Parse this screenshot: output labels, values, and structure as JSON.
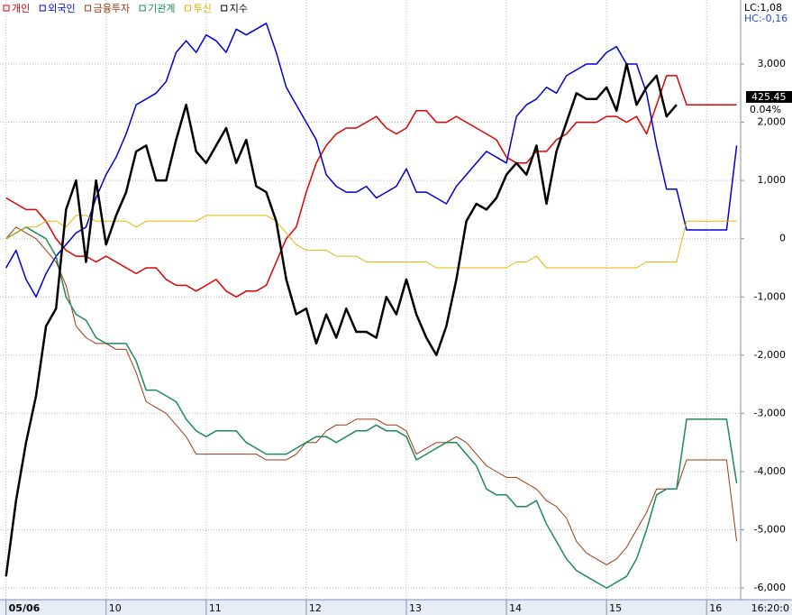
{
  "chart_data": {
    "type": "line",
    "legend_position": "top-left",
    "lc_label": "LC:1,08",
    "hc_label": "HC:-0,16",
    "last_price_label": "425.45",
    "last_change_label": "0.04%",
    "x": [
      0,
      0.1,
      0.2,
      0.3,
      0.4,
      0.5,
      0.6,
      0.7,
      0.8,
      0.9,
      1,
      1.1,
      1.2,
      1.3,
      1.4,
      1.5,
      1.6,
      1.7,
      1.8,
      1.9,
      2,
      2.1,
      2.2,
      2.3,
      2.4,
      2.5,
      2.6,
      2.7,
      2.8,
      2.9,
      3,
      3.1,
      3.2,
      3.3,
      3.4,
      3.5,
      3.6,
      3.7,
      3.8,
      3.9,
      4,
      4.1,
      4.2,
      4.3,
      4.4,
      4.5,
      4.6,
      4.7,
      4.8,
      4.9,
      5,
      5.1,
      5.2,
      5.3,
      5.4,
      5.5,
      5.6,
      5.7,
      5.8,
      5.9,
      6,
      6.1,
      6.2,
      6.3,
      6.4,
      6.5,
      6.6,
      6.7,
      6.8,
      6.9,
      7,
      7.1,
      7.2,
      7.3
    ],
    "xlim": [
      -0.06,
      7.34
    ],
    "xticks": [
      {
        "value": 0,
        "label": "05/06"
      },
      {
        "value": 1,
        "label": "10"
      },
      {
        "value": 2,
        "label": "11"
      },
      {
        "value": 3,
        "label": "12"
      },
      {
        "value": 4,
        "label": "13"
      },
      {
        "value": 5,
        "label": "14"
      },
      {
        "value": 6,
        "label": "15"
      },
      {
        "value": 7,
        "label": "16"
      }
    ],
    "x_end_label": "16:20:0",
    "ylim": [
      -6200,
      4100
    ],
    "yticks": [
      {
        "value": 3000,
        "label": "3,000"
      },
      {
        "value": 2000,
        "label": "2,000"
      },
      {
        "value": 1000,
        "label": "1,000"
      },
      0,
      {
        "value": -1000,
        "label": "-1,000"
      },
      {
        "value": -2000,
        "label": "-2,000"
      },
      {
        "value": -3000,
        "label": "-3,000"
      },
      {
        "value": -4000,
        "label": "-4,000"
      },
      {
        "value": -5000,
        "label": "-5,000"
      },
      {
        "value": -6000,
        "label": "-6,000"
      }
    ],
    "grid": true,
    "series": [
      {
        "name": "개인",
        "color": "#e00000",
        "width": 1.5,
        "values": [
          700,
          600,
          500,
          500,
          300,
          0,
          -200,
          -300,
          -300,
          -400,
          -300,
          -400,
          -500,
          -600,
          -500,
          -500,
          -700,
          -800,
          -800,
          -900,
          -800,
          -700,
          -900,
          -1000,
          -900,
          -900,
          -800,
          -400,
          0,
          200,
          800,
          1300,
          1600,
          1800,
          1900,
          1900,
          2000,
          2100,
          1900,
          1800,
          1900,
          2200,
          2200,
          2000,
          2000,
          2100,
          2000,
          1900,
          1800,
          1700,
          1400,
          1300,
          1300,
          1500,
          1500,
          1700,
          1800,
          2000,
          2000,
          2000,
          2100,
          2100,
          2000,
          2100,
          1800,
          2300,
          2800,
          2800,
          2300,
          2300,
          2300,
          2300,
          2300,
          2300
        ]
      },
      {
        "name": "외국인",
        "color": "#0000d8",
        "width": 1.5,
        "values": [
          -500,
          -200,
          -700,
          -1000,
          -600,
          -300,
          -100,
          100,
          200,
          700,
          1100,
          1400,
          1800,
          2300,
          2400,
          2500,
          2700,
          3200,
          3400,
          3200,
          3500,
          3400,
          3200,
          3600,
          3500,
          3600,
          3700,
          3200,
          2600,
          2300,
          2000,
          1700,
          1100,
          900,
          800,
          800,
          900,
          700,
          800,
          900,
          1200,
          800,
          800,
          700,
          600,
          900,
          1100,
          1300,
          1500,
          1400,
          1300,
          2100,
          2300,
          2400,
          2600,
          2500,
          2800,
          2900,
          3000,
          3000,
          3200,
          3300,
          3000,
          3000,
          2500,
          1600,
          850,
          850,
          150,
          150,
          150,
          150,
          150,
          1600
        ]
      },
      {
        "name": "금융투자",
        "color": "#9a3a10",
        "width": 1,
        "values": [
          0,
          200,
          100,
          0,
          -200,
          -400,
          -800,
          -1500,
          -1700,
          -1800,
          -1800,
          -1900,
          -1900,
          -2300,
          -2800,
          -2900,
          -3000,
          -3200,
          -3400,
          -3700,
          -3700,
          -3700,
          -3700,
          -3700,
          -3700,
          -3700,
          -3800,
          -3800,
          -3800,
          -3700,
          -3500,
          -3500,
          -3300,
          -3200,
          -3200,
          -3100,
          -3100,
          -3100,
          -3200,
          -3200,
          -3300,
          -3700,
          -3600,
          -3500,
          -3500,
          -3400,
          -3500,
          -3700,
          -3900,
          -4000,
          -4100,
          -4100,
          -4200,
          -4300,
          -4500,
          -4600,
          -4800,
          -5200,
          -5400,
          -5500,
          -5600,
          -5500,
          -5300,
          -5000,
          -4700,
          -4300,
          -4300,
          -4300,
          -3800,
          -3800,
          -3800,
          -3800,
          -3800,
          -5200
        ]
      },
      {
        "name": "기관계",
        "color": "#1e8a5a",
        "width": 1.5,
        "values": [
          0,
          100,
          200,
          100,
          0,
          -300,
          -1000,
          -1300,
          -1400,
          -1700,
          -1800,
          -1800,
          -1800,
          -2100,
          -2600,
          -2600,
          -2700,
          -2800,
          -3100,
          -3300,
          -3400,
          -3300,
          -3300,
          -3300,
          -3500,
          -3600,
          -3700,
          -3700,
          -3700,
          -3600,
          -3500,
          -3400,
          -3400,
          -3500,
          -3400,
          -3300,
          -3300,
          -3200,
          -3300,
          -3300,
          -3400,
          -3800,
          -3700,
          -3600,
          -3500,
          -3500,
          -3700,
          -3900,
          -4300,
          -4400,
          -4400,
          -4600,
          -4600,
          -4500,
          -4900,
          -5200,
          -5500,
          -5700,
          -5800,
          -5900,
          -6000,
          -5900,
          -5800,
          -5500,
          -5000,
          -4400,
          -4300,
          -4300,
          -3100,
          -3100,
          -3100,
          -3100,
          -3100,
          -4200
        ]
      },
      {
        "name": "투신",
        "color": "#e8b400",
        "width": 1,
        "values": [
          0,
          100,
          200,
          200,
          300,
          300,
          200,
          400,
          400,
          300,
          300,
          300,
          300,
          200,
          300,
          300,
          300,
          300,
          300,
          300,
          400,
          400,
          400,
          400,
          400,
          400,
          400,
          300,
          100,
          -100,
          -200,
          -200,
          -200,
          -300,
          -300,
          -300,
          -400,
          -400,
          -400,
          -400,
          -400,
          -400,
          -400,
          -500,
          -500,
          -500,
          -500,
          -500,
          -500,
          -500,
          -500,
          -400,
          -400,
          -300,
          -500,
          -500,
          -500,
          -500,
          -500,
          -500,
          -500,
          -500,
          -500,
          -500,
          -400,
          -400,
          -400,
          -400,
          300,
          300,
          300,
          300,
          300,
          300
        ]
      },
      {
        "name": "지수",
        "color": "#000000",
        "width": 2.5,
        "values": [
          -5800,
          -4500,
          -3500,
          -2700,
          -1500,
          -1200,
          500,
          1000,
          -400,
          1000,
          -100,
          400,
          800,
          1500,
          1600,
          1000,
          1000,
          1700,
          2300,
          1500,
          1300,
          1600,
          1900,
          1300,
          1700,
          900,
          800,
          300,
          -700,
          -1300,
          -1200,
          -1800,
          -1300,
          -1700,
          -1200,
          -1600,
          -1600,
          -1700,
          -1000,
          -1300,
          -700,
          -1300,
          -1700,
          -2000,
          -1500,
          -700,
          300,
          600,
          500,
          700,
          1100,
          1300,
          1100,
          1600,
          600,
          1500,
          2000,
          2500,
          2400,
          2400,
          2600,
          2200,
          3000,
          2300,
          2600,
          2800,
          2100,
          2300,
          null,
          null,
          null,
          null,
          null,
          null
        ]
      }
    ]
  }
}
